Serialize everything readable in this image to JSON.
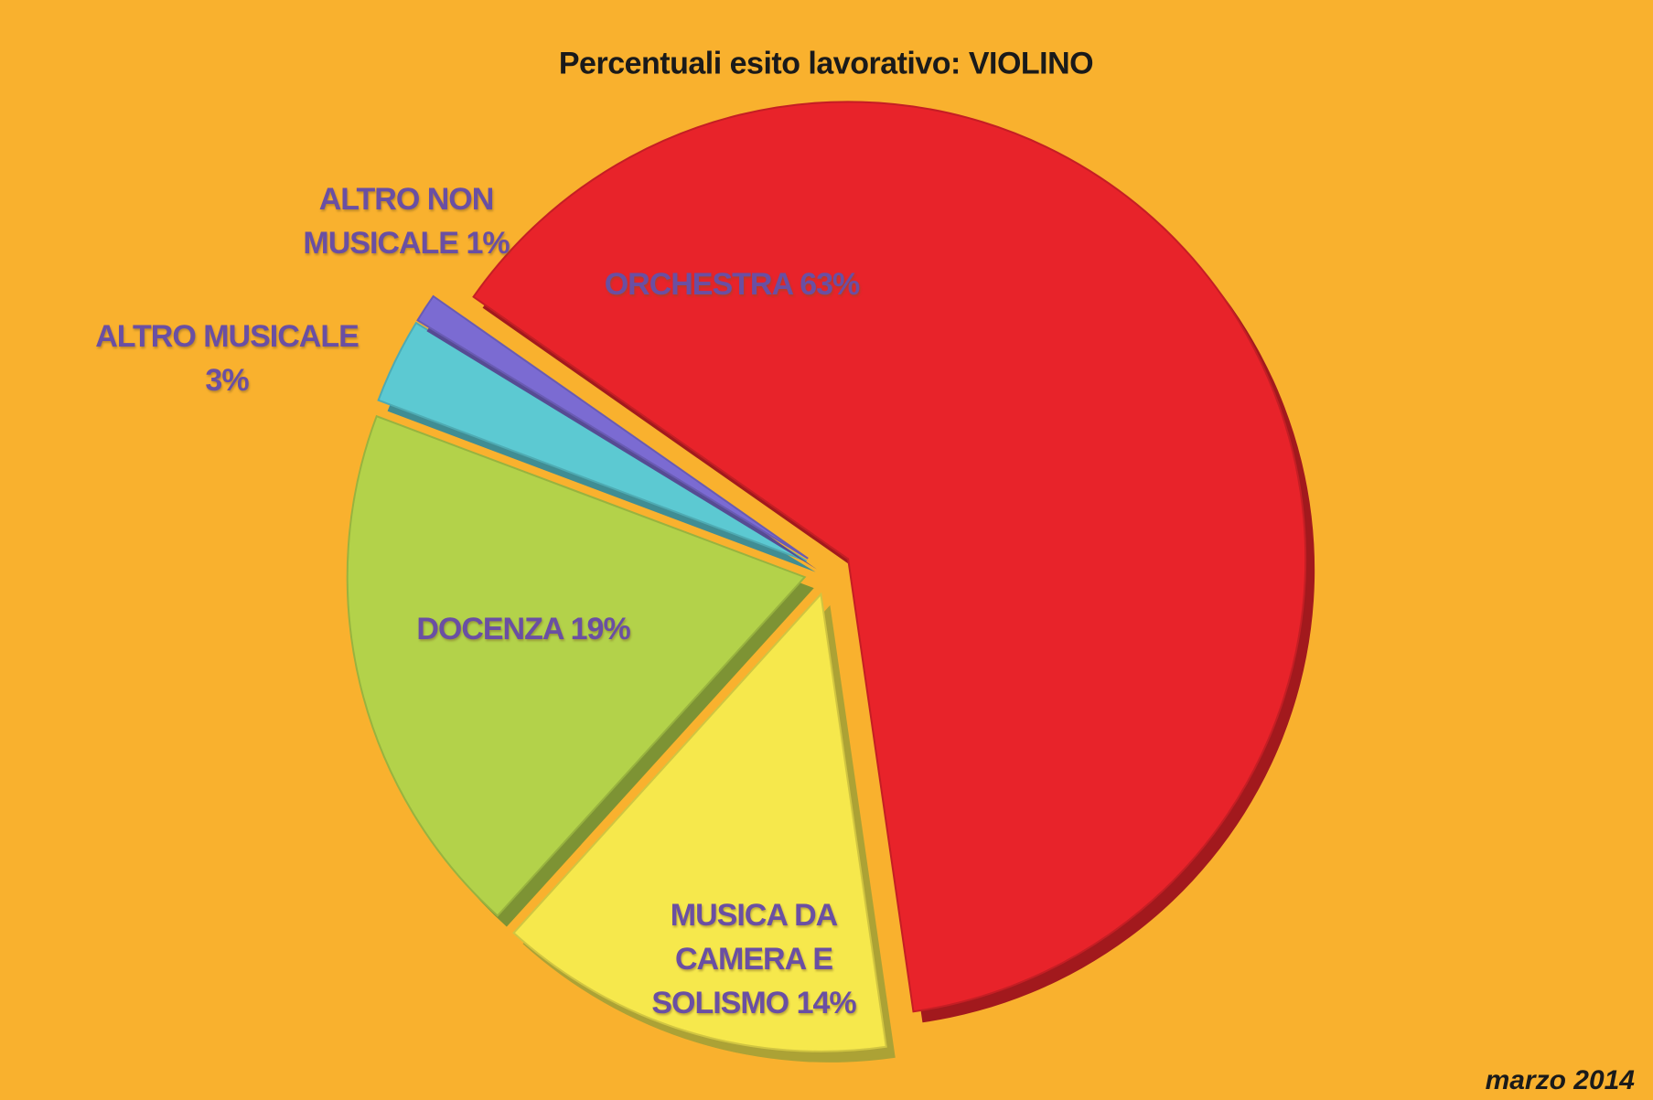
{
  "chart_data": {
    "type": "pie",
    "title": "Percentuali esito lavorativo: VIOLINO",
    "note": "marzo 2014",
    "categories": [
      "ORCHESTRA",
      "MUSICA DA CAMERA E SOLISMO",
      "DOCENZA",
      "ALTRO MUSICALE",
      "ALTRO NON MUSICALE"
    ],
    "values": [
      63,
      14,
      19,
      3,
      1
    ],
    "value_labels": [
      "63%",
      "14%",
      "19%",
      "3%",
      "1%"
    ],
    "colors": [
      "#e8232a",
      "#f6e84c",
      "#b3d24a",
      "#5cc9d2",
      "#7b6bd2"
    ]
  }
}
